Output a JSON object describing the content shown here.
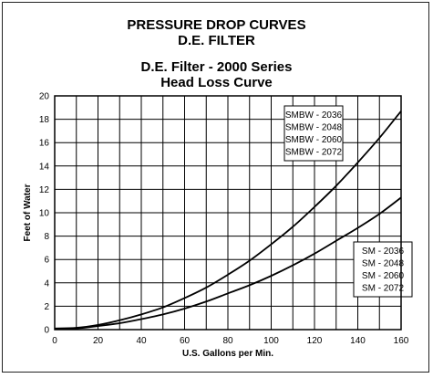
{
  "chart_data": {
    "type": "line",
    "title": "PRESSURE DROP CURVES",
    "subtitle": "D.E. FILTER",
    "title2": "D.E. Filter - 2000 Series",
    "subtitle2": "Head Loss Curve",
    "xlabel": "U.S. Gallons per Min.",
    "ylabel": "Feet of Water",
    "xlim": [
      0,
      160
    ],
    "ylim": [
      0,
      20
    ],
    "xticks": [
      0,
      20,
      40,
      60,
      80,
      100,
      120,
      140,
      160
    ],
    "yticks": [
      0,
      2,
      4,
      6,
      8,
      10,
      12,
      14,
      16,
      18,
      20
    ],
    "grid": true,
    "series": [
      {
        "name": "SMBW",
        "legend": [
          "SMBW - 2036",
          "SMBW - 2048",
          "SMBW - 2060",
          "SMBW - 2072"
        ],
        "legend_position": "top-right",
        "x": [
          0,
          10,
          20,
          30,
          40,
          50,
          60,
          70,
          80,
          90,
          100,
          110,
          120,
          130,
          140,
          150,
          160
        ],
        "y": [
          0.1,
          0.15,
          0.4,
          0.8,
          1.3,
          1.9,
          2.7,
          3.6,
          4.7,
          5.9,
          7.3,
          8.8,
          10.5,
          12.3,
          14.3,
          16.4,
          18.7
        ]
      },
      {
        "name": "SM",
        "legend": [
          "SM - 2036",
          "SM - 2048",
          "SM - 2060",
          "SM - 2072"
        ],
        "legend_position": "bottom-right",
        "x": [
          0,
          10,
          20,
          30,
          40,
          50,
          60,
          70,
          80,
          90,
          100,
          110,
          120,
          130,
          140,
          150,
          160
        ],
        "y": [
          0.05,
          0.1,
          0.3,
          0.55,
          0.9,
          1.3,
          1.8,
          2.4,
          3.1,
          3.8,
          4.6,
          5.5,
          6.5,
          7.6,
          8.7,
          9.9,
          11.3
        ]
      }
    ]
  }
}
